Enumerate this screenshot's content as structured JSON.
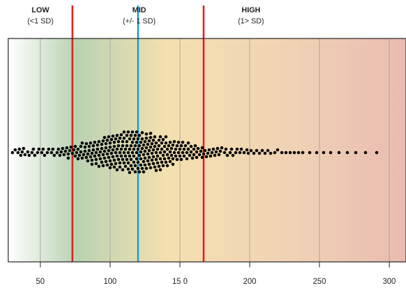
{
  "chart_data": {
    "type": "scatter",
    "subtype": "beeswarm",
    "title": "",
    "xlabel": "",
    "ylabel": "",
    "xlim": [
      27,
      312
    ],
    "xticks": [
      50,
      100,
      150,
      200,
      250,
      300
    ],
    "xtick_labels": [
      "50",
      "100",
      "15 0",
      "200",
      "250",
      "300"
    ],
    "grid": "vertical",
    "categories": [
      {
        "title": "LOW",
        "subtitle": "(<1 SD)"
      },
      {
        "title": "MID",
        "subtitle": "(+/- 1 SD)"
      },
      {
        "title": "HIGH",
        "subtitle": "(1> SD)"
      }
    ],
    "reference_lines": [
      {
        "value": 73,
        "role": "lower threshold (-1 SD)",
        "color": "#e0201c"
      },
      {
        "value": 120,
        "role": "mean",
        "color": "#1aa3d9"
      },
      {
        "value": 167,
        "role": "upper threshold (+1 SD)",
        "color": "#e0201c"
      }
    ],
    "background_gradient": [
      "#ffffff",
      "#b9d2b2",
      "#f4e0b0",
      "#f0d2b4",
      "#e9bbb2"
    ],
    "point_color": "#000000",
    "points": [
      30,
      32,
      34,
      35,
      36,
      37,
      38,
      39,
      41,
      42,
      44,
      45,
      46,
      48,
      49,
      51,
      52,
      53,
      55,
      56,
      58,
      59,
      60,
      62,
      63,
      64,
      65,
      66,
      67,
      68,
      69,
      70,
      70,
      71,
      72,
      73,
      74,
      75,
      75,
      76,
      77,
      77,
      78,
      79,
      79,
      80,
      80,
      81,
      82,
      82,
      83,
      83,
      84,
      84,
      85,
      85,
      86,
      86,
      87,
      87,
      87,
      88,
      88,
      89,
      89,
      90,
      90,
      90,
      91,
      91,
      92,
      92,
      92,
      93,
      93,
      94,
      94,
      94,
      95,
      95,
      95,
      96,
      96,
      96,
      97,
      97,
      97,
      98,
      98,
      98,
      99,
      99,
      99,
      100,
      100,
      100,
      100,
      101,
      101,
      101,
      102,
      102,
      102,
      103,
      103,
      103,
      103,
      104,
      104,
      104,
      105,
      105,
      105,
      105,
      106,
      106,
      106,
      107,
      107,
      107,
      107,
      108,
      108,
      108,
      109,
      109,
      109,
      109,
      110,
      110,
      110,
      110,
      111,
      111,
      111,
      112,
      112,
      112,
      112,
      113,
      113,
      113,
      113,
      114,
      114,
      114,
      114,
      115,
      115,
      115,
      115,
      116,
      116,
      116,
      116,
      117,
      117,
      117,
      117,
      118,
      118,
      118,
      118,
      119,
      119,
      119,
      119,
      120,
      120,
      120,
      120,
      121,
      121,
      121,
      121,
      122,
      122,
      122,
      122,
      123,
      123,
      123,
      123,
      124,
      124,
      124,
      124,
      125,
      125,
      125,
      125,
      126,
      126,
      126,
      126,
      127,
      127,
      127,
      128,
      128,
      128,
      128,
      129,
      129,
      129,
      129,
      130,
      130,
      130,
      131,
      131,
      131,
      131,
      132,
      132,
      132,
      133,
      133,
      133,
      133,
      134,
      134,
      134,
      135,
      135,
      135,
      136,
      136,
      136,
      136,
      137,
      137,
      137,
      138,
      138,
      138,
      139,
      139,
      139,
      140,
      140,
      140,
      141,
      141,
      141,
      142,
      142,
      143,
      143,
      143,
      144,
      144,
      145,
      145,
      145,
      146,
      146,
      147,
      147,
      148,
      148,
      149,
      149,
      150,
      150,
      151,
      151,
      152,
      152,
      153,
      153,
      154,
      155,
      155,
      156,
      156,
      157,
      158,
      158,
      159,
      160,
      160,
      161,
      162,
      162,
      163,
      164,
      165,
      166,
      166,
      167,
      168,
      169,
      170,
      171,
      172,
      173,
      174,
      175,
      176,
      177,
      178,
      179,
      180,
      182,
      183,
      184,
      186,
      187,
      188,
      190,
      191,
      193,
      194,
      196,
      198,
      199,
      201,
      203,
      205,
      207,
      209,
      211,
      213,
      215,
      218,
      220,
      223,
      226,
      229,
      232,
      235,
      238,
      243,
      248,
      253,
      258,
      264,
      270,
      276,
      283,
      291
    ]
  }
}
